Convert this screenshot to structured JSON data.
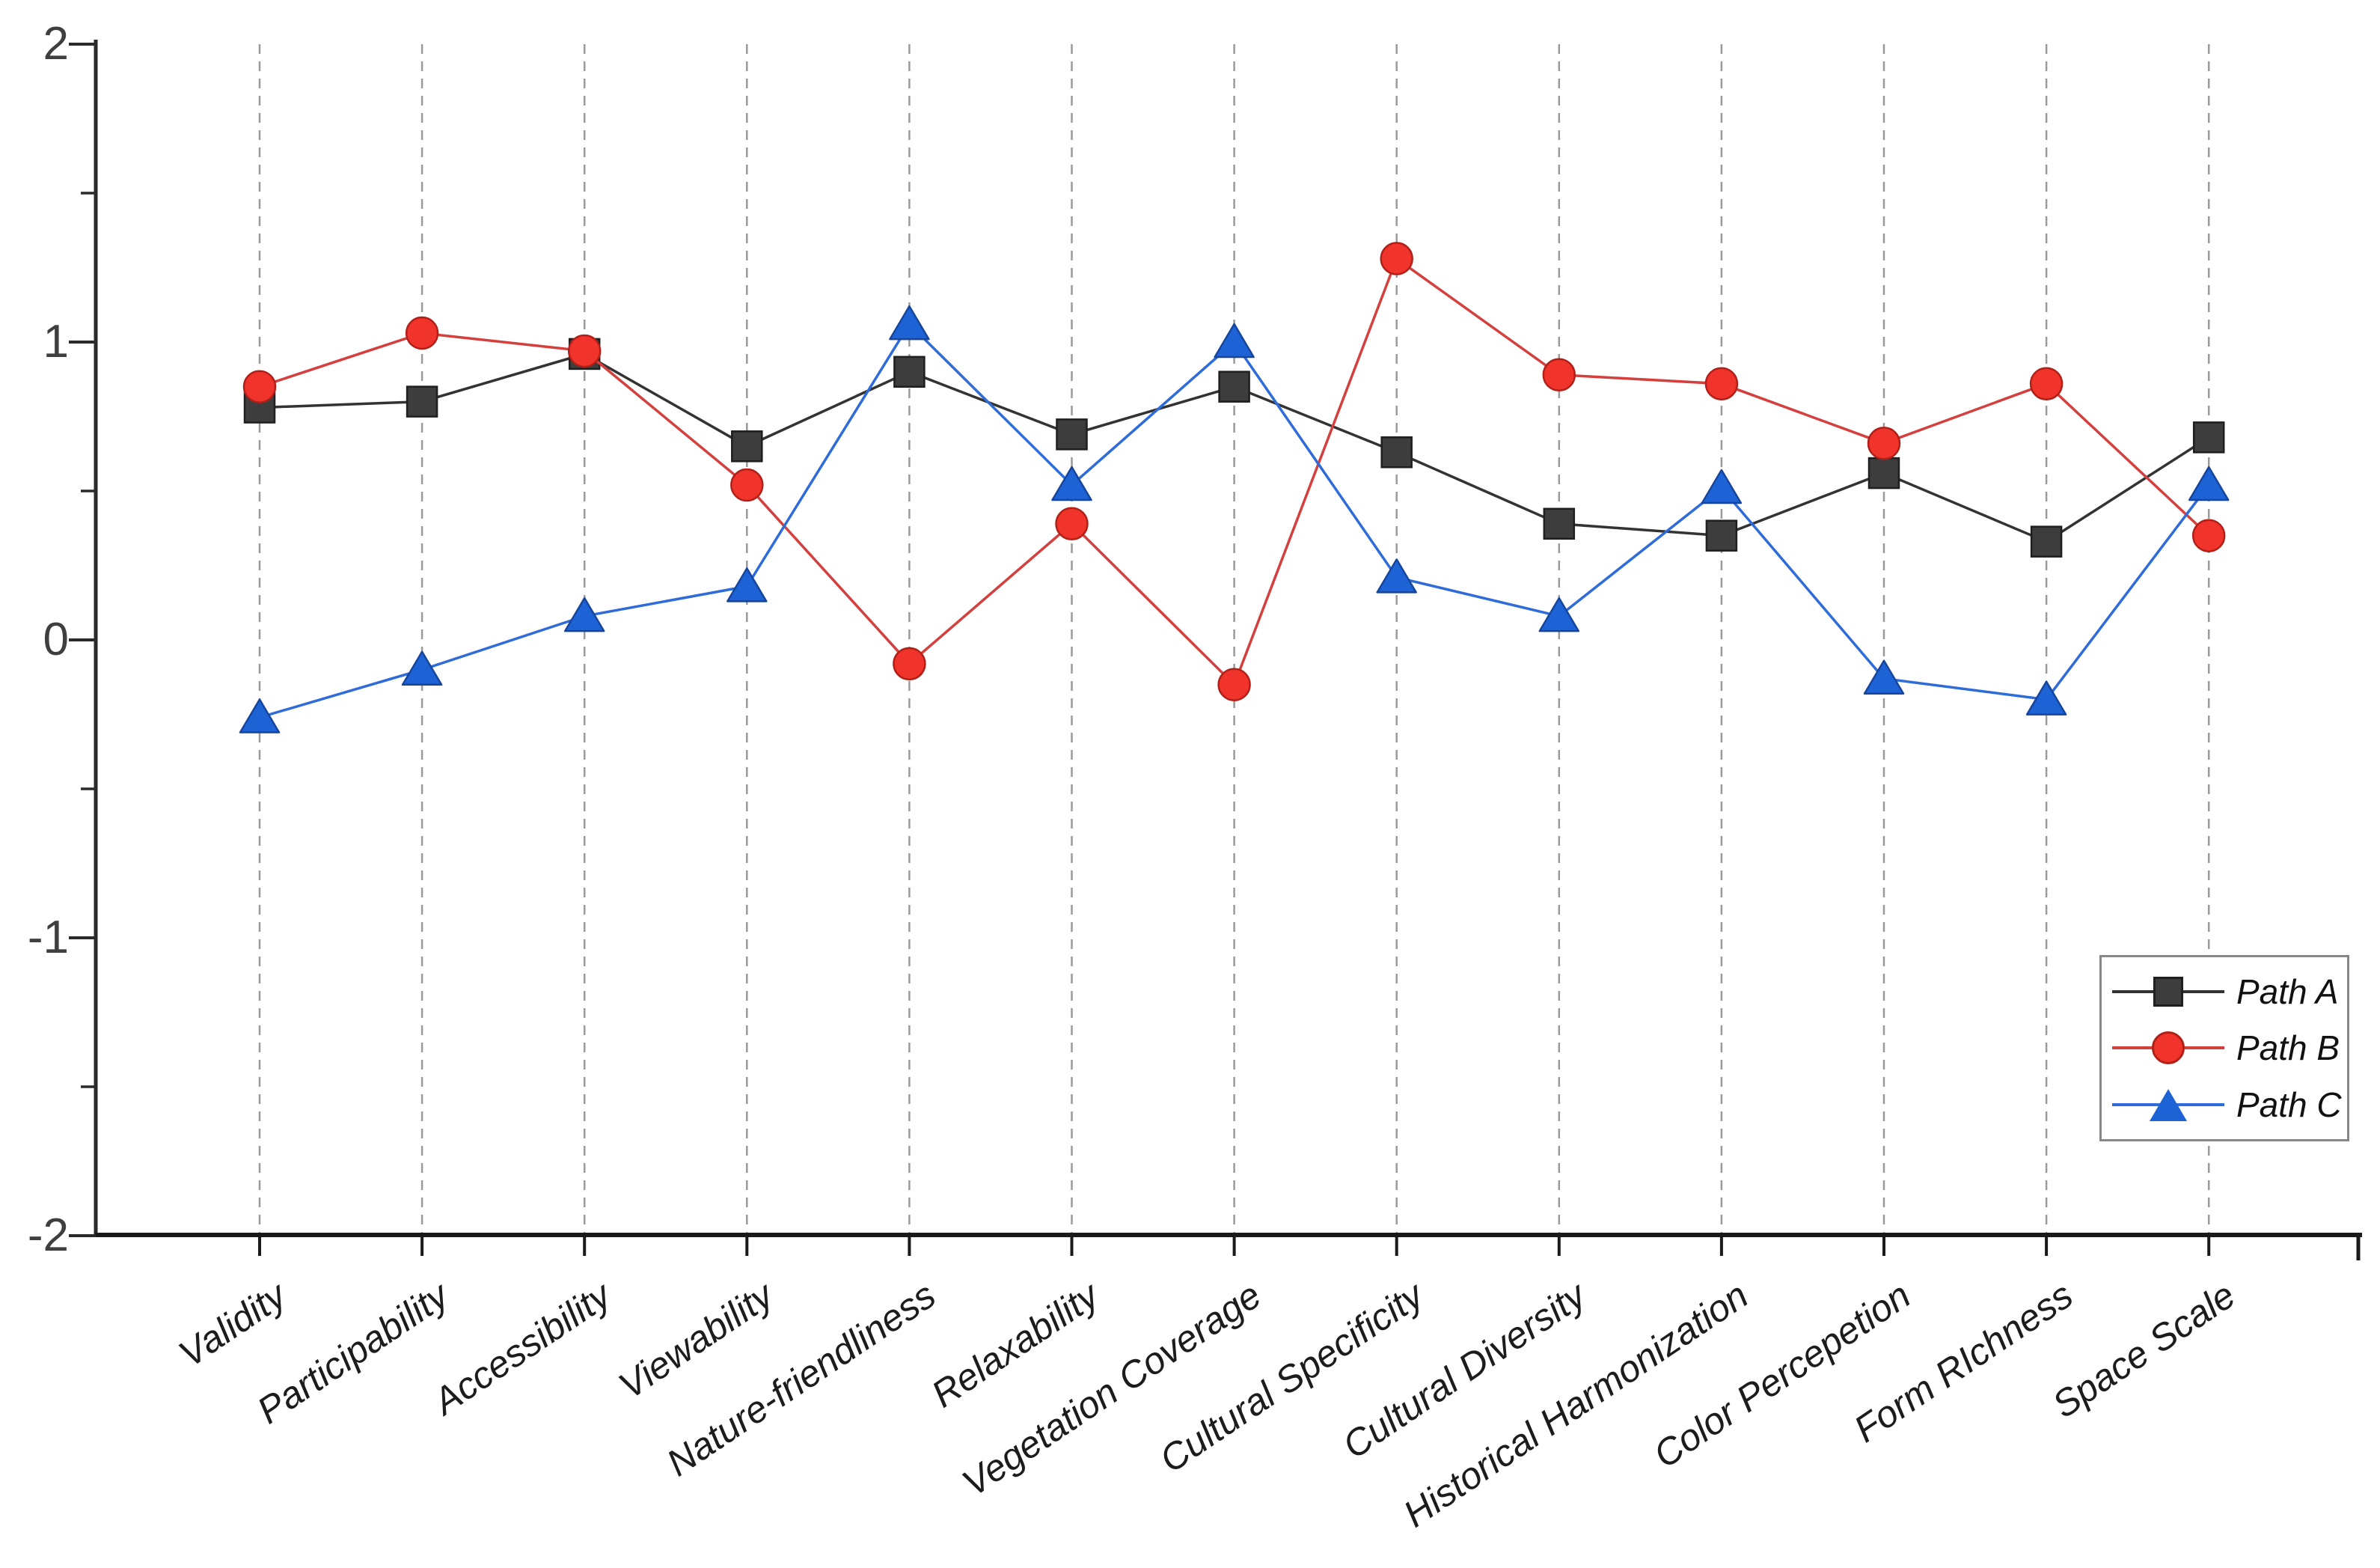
{
  "figure": {
    "background": "#ffffff",
    "axis_color": "#2a2a2a",
    "grid_color": "#9a9a9a",
    "tick_label_color": "#3f3f3f"
  },
  "chart_data": {
    "type": "line",
    "title": "",
    "xlabel": "",
    "ylabel": "",
    "ylim": [
      -2,
      2
    ],
    "yticks": [
      2,
      1,
      0,
      -1,
      -2
    ],
    "minor_yticks": [
      1.5,
      0.5,
      -0.5,
      -1.5
    ],
    "ytick_labels": [
      "2",
      "1",
      "0",
      "-1",
      "-2"
    ],
    "grid": {
      "vertical_dashed": true,
      "horizontal": false,
      "color": "#9a9a9a"
    },
    "legend_position": "right",
    "categories": [
      "Validity",
      "Participability",
      "Accessibility",
      "Viewability",
      "Nature-friendliness",
      "Relaxability",
      "Vegetation Coverage",
      "Cultural Specificity",
      "Cultural Diversity",
      "Historical Harmonization",
      "Color Percepetion",
      "Form RIchness",
      "Space Scale"
    ],
    "series": [
      {
        "name": "Path A",
        "marker": "square",
        "marker_color": "#3d3d3d",
        "marker_edge_color": "#1f1f1f",
        "line_color": "#333333",
        "values": [
          0.78,
          0.8,
          0.96,
          0.65,
          0.9,
          0.69,
          0.85,
          0.63,
          0.39,
          0.35,
          0.56,
          0.33,
          0.68
        ]
      },
      {
        "name": "Path B",
        "marker": "circle",
        "marker_color": "#f1342b",
        "marker_edge_color": "#b02018",
        "line_color": "#d4403e",
        "values": [
          0.85,
          1.03,
          0.97,
          0.52,
          -0.08,
          0.39,
          -0.15,
          1.28,
          0.89,
          0.86,
          0.66,
          0.86,
          0.35
        ]
      },
      {
        "name": "Path C",
        "marker": "triangle",
        "marker_color": "#1e63d6",
        "marker_edge_color": "#15459c",
        "line_color": "#2f6cd9",
        "values": [
          -0.26,
          -0.1,
          0.08,
          0.18,
          1.06,
          0.52,
          1.0,
          0.21,
          0.08,
          0.51,
          -0.13,
          -0.2,
          0.52
        ]
      }
    ]
  }
}
